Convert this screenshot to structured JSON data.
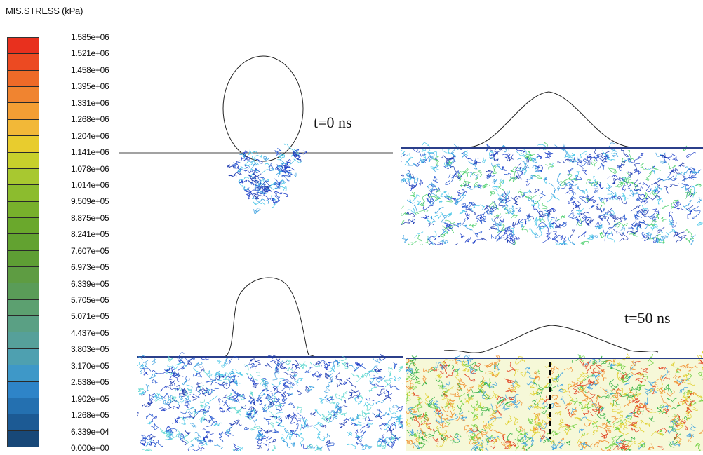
{
  "legend": {
    "title": "MIS.STRESS (kPa)",
    "ticks": [
      "1.585e+06",
      "1.521e+06",
      "1.458e+06",
      "1.395e+06",
      "1.331e+06",
      "1.268e+06",
      "1.204e+06",
      "1.141e+06",
      "1.078e+06",
      "1.014e+06",
      "9.509e+05",
      "8.875e+05",
      "8.241e+05",
      "7.607e+05",
      "6.973e+05",
      "6.339e+05",
      "5.705e+05",
      "5.071e+05",
      "4.437e+05",
      "3.803e+05",
      "3.170e+05",
      "2.538e+05",
      "1.902e+05",
      "1.268e+05",
      "6.339e+04",
      "0.000e+00"
    ],
    "colors": [
      "#e8301e",
      "#ec4a22",
      "#ee6a28",
      "#f08430",
      "#f49e34",
      "#f2b838",
      "#e8cc2e",
      "#c8d02c",
      "#a8c830",
      "#8cbc2e",
      "#78b02c",
      "#6aa82c",
      "#62a230",
      "#5e9e34",
      "#5e9c42",
      "#5a9c58",
      "#5ca070",
      "#5aa084",
      "#56a09a",
      "#4ea0b0",
      "#3e98c8",
      "#2e84c8",
      "#2470b0",
      "#1c5a94",
      "#184878"
    ]
  },
  "labels": {
    "t0": "t=0 ns",
    "t50": "t=50 ns"
  }
}
